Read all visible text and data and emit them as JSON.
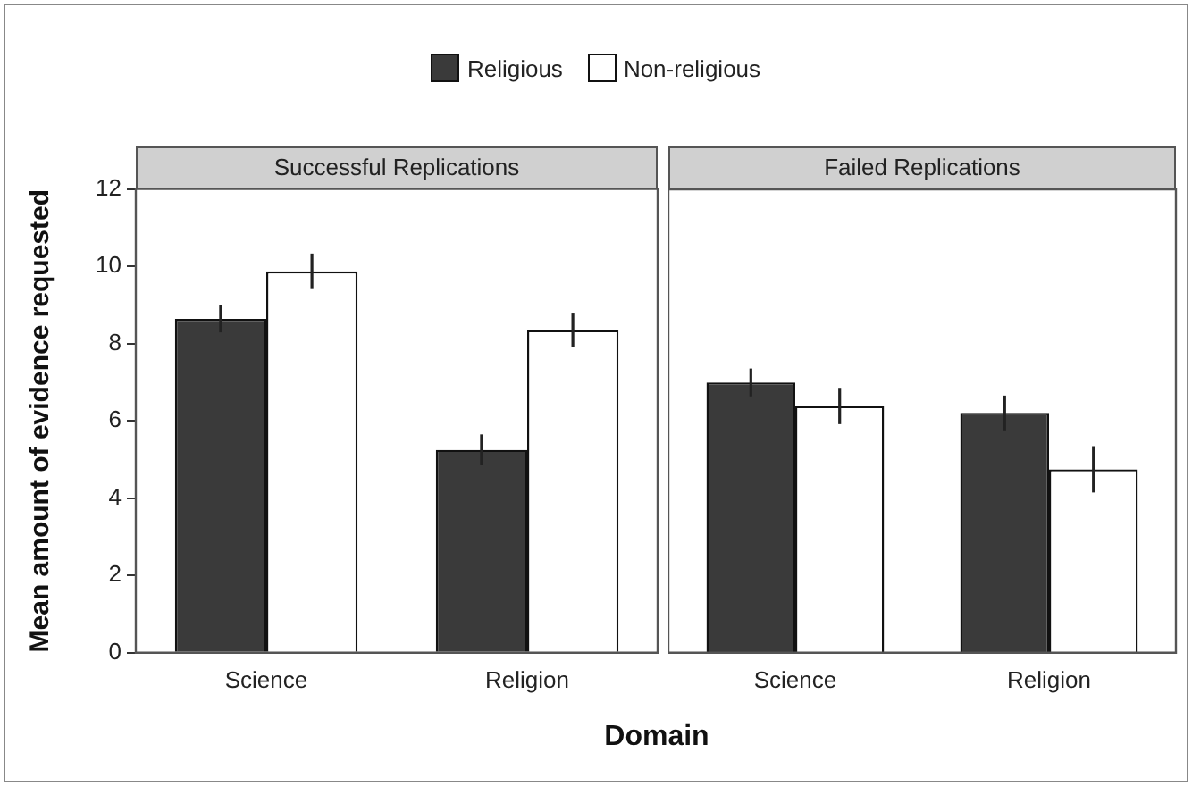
{
  "chart_data": [
    {
      "type": "bar",
      "title": "Successful Replications",
      "xlabel": "Domain",
      "ylabel": "Mean amount of evidence requested",
      "categories": [
        "Science",
        "Religion"
      ],
      "series": [
        {
          "name": "Religious",
          "color": "#3a3a3a",
          "values": [
            8.64,
            5.25
          ],
          "errors": [
            0.35,
            0.4
          ]
        },
        {
          "name": "Non-religious",
          "color": "#ffffff",
          "values": [
            9.87,
            8.35
          ],
          "errors": [
            0.46,
            0.45
          ]
        }
      ],
      "ylim": [
        0,
        12
      ],
      "yticks": [
        0,
        2,
        4,
        6,
        8,
        10,
        12
      ],
      "legend": "top",
      "grid": false
    },
    {
      "type": "bar",
      "title": "Failed Replications",
      "categories": [
        "Science",
        "Religion"
      ],
      "series": [
        {
          "color": "#3a3a3a",
          "values": [
            7.0,
            6.21
          ],
          "errors": [
            0.36,
            0.45
          ]
        },
        {
          "color": "#ffffff",
          "values": [
            6.39,
            4.75
          ],
          "errors": [
            0.47,
            0.6
          ]
        }
      ],
      "ylim": [
        0,
        12
      ],
      "tick_labels": "x",
      "grid": false
    }
  ]
}
